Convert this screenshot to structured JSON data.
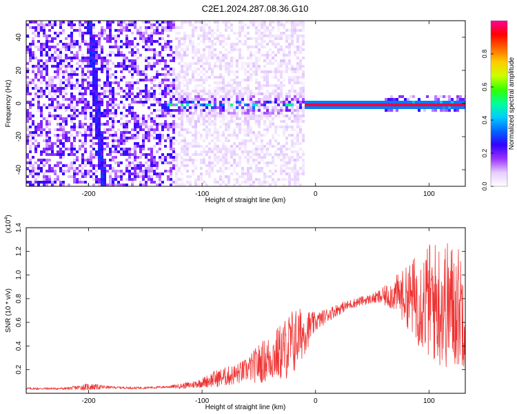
{
  "figure": {
    "title": "C2E1.2024.287.08.36.G10"
  },
  "colors": {
    "axis": "#000000",
    "snr_line": "#ee3333",
    "spectrogram_background": "#ffffff"
  },
  "chart_data": [
    {
      "type": "heatmap",
      "name": "spectrogram",
      "title": "",
      "xlabel": "Height of straight line (km)",
      "ylabel": "Frequency (Hz)",
      "xlim": [
        -255,
        132
      ],
      "ylim": [
        -50,
        50
      ],
      "xticks": [
        -200,
        -100,
        0,
        100
      ],
      "xtick_labels": [
        "-200",
        "-100",
        "0",
        "100"
      ],
      "yticks": [
        -40,
        -20,
        0,
        20,
        40
      ],
      "ytick_labels": [
        "-40",
        "-20",
        "0",
        "20",
        "40"
      ],
      "colorbar": {
        "label": "Normalized spectral amplitude",
        "range": [
          0,
          1
        ],
        "ticks": [
          0.0,
          0.2,
          0.4,
          0.6,
          0.8
        ],
        "tick_labels": [
          "0.0",
          "0.2",
          "0.4",
          "0.6",
          "0.8"
        ],
        "colormap": [
          "#ffffff",
          "#e6ccff",
          "#9933ff",
          "#3300ff",
          "#0066ff",
          "#00ccff",
          "#00ff99",
          "#33ff00",
          "#ccff00",
          "#ffcc00",
          "#ff6600",
          "#ff0000",
          "#ff0099"
        ]
      },
      "features": [
        {
          "label": "diffuse purple noise",
          "x_range": [
            -255,
            -125
          ],
          "freq_range": [
            -50,
            50
          ],
          "amplitude": 0.15
        },
        {
          "label": "sparse light noise",
          "x_range": [
            -125,
            -10
          ],
          "freq_range": [
            -50,
            50
          ],
          "amplitude": 0.05
        },
        {
          "label": "steep oblique trace",
          "x_start": -200,
          "freq_start": 50,
          "x_end": -188,
          "freq_end": -50,
          "amplitude": 0.2
        },
        {
          "label": "central broad band",
          "x_range": [
            -135,
            -10
          ],
          "freq_range": [
            -8,
            8
          ],
          "amplitude": 0.3
        },
        {
          "label": "strong carrier line",
          "x_range": [
            -10,
            132
          ],
          "freq": 0,
          "amplitude": 0.95
        },
        {
          "label": "right-side spread",
          "x_range": [
            60,
            132
          ],
          "freq_range": [
            -5,
            5
          ],
          "amplitude": 0.35
        }
      ]
    },
    {
      "type": "line",
      "name": "snr",
      "title": "",
      "xlabel": "Height of straight line (km)",
      "ylabel": "SNR (10 * v/v)",
      "y_multiplier_label": "(x10",
      "y_multiplier_exponent": "4",
      "y_multiplier_close": ")",
      "xlim": [
        -255,
        132
      ],
      "ylim": [
        0,
        1.4
      ],
      "xticks": [
        -200,
        -100,
        0,
        100
      ],
      "xtick_labels": [
        "-200",
        "-100",
        "0",
        "100"
      ],
      "yticks": [
        0.2,
        0.4,
        0.6,
        0.8,
        1.0,
        1.2,
        1.4
      ],
      "ytick_labels": [
        "0.2",
        "0.4",
        "0.6",
        "0.8",
        "1.0",
        "1.2",
        "1.4"
      ],
      "series": [
        {
          "envelope": {
            "x": [
              -255,
              -220,
              -200,
              -180,
              -160,
              -140,
              -130,
              -120,
              -110,
              -100,
              -90,
              -80,
              -70,
              -60,
              -50,
              -40,
              -30,
              -20,
              -10,
              0,
              10,
              20,
              30,
              40,
              50,
              60,
              70,
              80,
              90,
              100,
              110,
              120,
              132
            ],
            "mean": [
              0.04,
              0.04,
              0.055,
              0.05,
              0.045,
              0.05,
              0.055,
              0.06,
              0.07,
              0.09,
              0.12,
              0.14,
              0.16,
              0.2,
              0.25,
              0.3,
              0.35,
              0.43,
              0.52,
              0.6,
              0.66,
              0.71,
              0.75,
              0.78,
              0.8,
              0.82,
              0.84,
              0.82,
              0.8,
              0.78,
              0.76,
              0.74,
              0.72
            ],
            "amplitude": [
              0.01,
              0.01,
              0.03,
              0.01,
              0.01,
              0.01,
              0.01,
              0.02,
              0.03,
              0.04,
              0.07,
              0.08,
              0.09,
              0.1,
              0.17,
              0.2,
              0.25,
              0.3,
              0.2,
              0.08,
              0.06,
              0.05,
              0.04,
              0.04,
              0.04,
              0.08,
              0.15,
              0.25,
              0.4,
              0.5,
              0.55,
              0.55,
              0.5
            ]
          }
        }
      ]
    }
  ]
}
